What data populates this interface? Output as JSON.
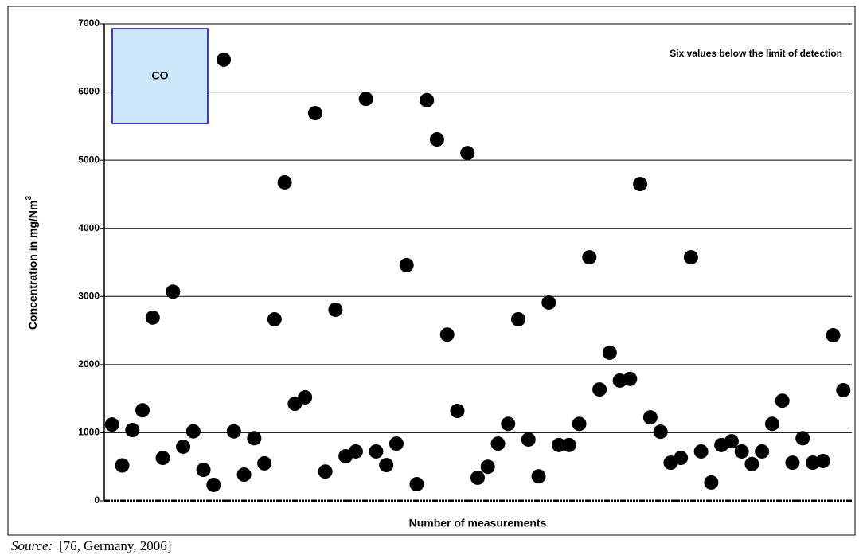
{
  "chart_data": {
    "type": "scatter",
    "legend_label": "CO",
    "annotation": "Six values below the limit of detection",
    "y_label": "Concentration in mg/Nm",
    "y_label_sup": "3",
    "x_label": "Number of measurements",
    "source_label": "Source:",
    "source": "[76, Germany, 2006]",
    "color": "#000000",
    "legend_color": "#cce8fa",
    "grid": true,
    "x": [
      1,
      2,
      3,
      4,
      5,
      6,
      7,
      8,
      9,
      10,
      11,
      12,
      13,
      14,
      15,
      16,
      17,
      18,
      19,
      20,
      21,
      22,
      23,
      24,
      25,
      26,
      27,
      28,
      29,
      30,
      31,
      32,
      33,
      34,
      35,
      36,
      37,
      38,
      39,
      40,
      41,
      42,
      43,
      44,
      45,
      46,
      47,
      48,
      49,
      50,
      51,
      52,
      53,
      54,
      55,
      56,
      57,
      58,
      59,
      60,
      61,
      62,
      63,
      64,
      65,
      66,
      67,
      68,
      69,
      70,
      71,
      72,
      73
    ],
    "values": [
      1120,
      520,
      1040,
      1330,
      2690,
      630,
      3070,
      795,
      1020,
      455,
      234,
      6475,
      1020,
      385,
      920,
      550,
      2665,
      4675,
      1425,
      1520,
      5690,
      430,
      2805,
      655,
      725,
      5900,
      725,
      525,
      840,
      3460,
      245,
      5880,
      5305,
      2440,
      1320,
      5105,
      340,
      500,
      840,
      1130,
      2665,
      900,
      360,
      2910,
      820,
      820,
      1130,
      3575,
      1635,
      2175,
      1765,
      1790,
      4650,
      1225,
      1015,
      560,
      630,
      3575,
      725,
      270,
      820,
      875,
      725,
      540,
      725,
      1130,
      1470,
      560,
      920,
      560,
      585,
      2430,
      1625
    ],
    "xlim": [
      0,
      74
    ],
    "ylim": [
      0,
      7000
    ],
    "yticks": [
      0,
      1000,
      2000,
      3000,
      4000,
      5000,
      6000,
      7000
    ]
  }
}
